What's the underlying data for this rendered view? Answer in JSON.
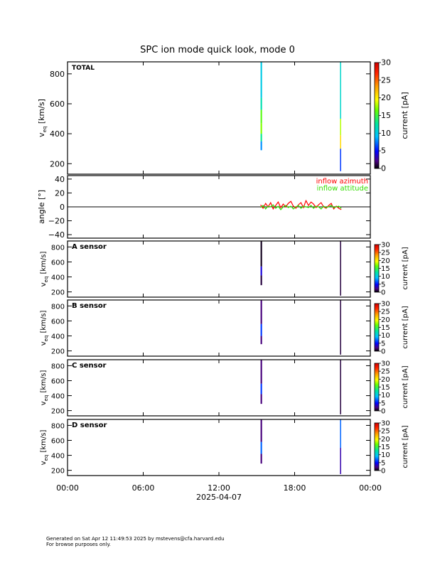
{
  "title": "SPC ion mode quick look, mode 0",
  "xaxis": {
    "ticks": [
      "00:00",
      "06:00",
      "12:00",
      "18:00",
      "00:00"
    ],
    "date": "2025-04-07"
  },
  "footer": {
    "line1": "Generated on Sat Apr 12 11:49:53 2025 by mstevens@cfa.harvard.edu",
    "line2": "For browse purposes only."
  },
  "colorbar": {
    "label": "current [pA]",
    "ticks": [
      "0",
      "5",
      "10",
      "15",
      "20",
      "25",
      "30"
    ]
  },
  "chart_data": [
    {
      "type": "heatmap",
      "panel": "total",
      "label": "TOTAL",
      "ylabel_main": "v",
      "ylabel_sub": "eq",
      "ylabel_unit": " [km/s]",
      "yticks": [
        "200",
        "400",
        "600",
        "800"
      ],
      "ylim": [
        130,
        880
      ],
      "xlim_hours": [
        0,
        24
      ],
      "zlim": [
        0,
        30
      ],
      "blocks": [
        {
          "x0": 15.3,
          "x1": 15.42,
          "y0": 290,
          "y1": 350,
          "z": 8
        },
        {
          "x0": 15.3,
          "x1": 15.42,
          "y0": 350,
          "y1": 400,
          "z": 13
        },
        {
          "x0": 15.3,
          "x1": 15.42,
          "y0": 400,
          "y1": 470,
          "z": 17
        },
        {
          "x0": 15.3,
          "x1": 15.42,
          "y0": 470,
          "y1": 560,
          "z": 16
        },
        {
          "x0": 15.3,
          "x1": 15.42,
          "y0": 560,
          "y1": 640,
          "z": 12
        },
        {
          "x0": 15.3,
          "x1": 15.42,
          "y0": 640,
          "y1": 880,
          "z": 10
        },
        {
          "x0": 21.6,
          "x1": 21.66,
          "y0": 150,
          "y1": 300,
          "z": 6
        },
        {
          "x0": 21.6,
          "x1": 21.66,
          "y0": 300,
          "y1": 390,
          "z": 21
        },
        {
          "x0": 21.6,
          "x1": 21.66,
          "y0": 390,
          "y1": 500,
          "z": 18
        },
        {
          "x0": 21.6,
          "x1": 21.66,
          "y0": 500,
          "y1": 880,
          "z": 11
        }
      ]
    },
    {
      "type": "line",
      "panel": "angle",
      "ylabel": "angle [°]",
      "yticks": [
        "−40",
        "−20",
        "0",
        "20",
        "40"
      ],
      "yvals": [
        -40,
        -20,
        0,
        20,
        40
      ],
      "ylim": [
        -45,
        45
      ],
      "xlim_hours": [
        0,
        24
      ],
      "legend": [
        "inflow azimuth",
        "inflow attitude"
      ],
      "series": [
        {
          "name": "inflow azimuth",
          "color": "#ff0000",
          "x": [
            15.3,
            15.5,
            15.7,
            15.9,
            16.1,
            16.3,
            16.5,
            16.7,
            16.9,
            17.1,
            17.3,
            17.5,
            17.7,
            17.9,
            18.1,
            18.3,
            18.5,
            18.7,
            18.9,
            19.1,
            19.3,
            19.5,
            19.7,
            19.9,
            20.1,
            20.3,
            20.5,
            20.7,
            20.9,
            21.1,
            21.3,
            21.5,
            21.7
          ],
          "y": [
            3,
            -2,
            5,
            0,
            6,
            -3,
            2,
            7,
            -1,
            4,
            0,
            5,
            8,
            1,
            -2,
            3,
            6,
            -1,
            9,
            2,
            7,
            4,
            -1,
            3,
            6,
            0,
            -2,
            2,
            5,
            -3,
            1,
            -2,
            -4
          ]
        },
        {
          "name": "inflow attitude",
          "color": "#33dd00",
          "x": [
            15.3,
            15.5,
            15.7,
            15.9,
            16.1,
            16.3,
            16.5,
            16.7,
            16.9,
            17.1,
            17.3,
            17.5,
            17.7,
            17.9,
            18.1,
            18.3,
            18.5,
            18.7,
            18.9,
            19.1,
            19.3,
            19.5,
            19.7,
            19.9,
            20.1,
            20.3,
            20.5,
            20.7,
            20.9,
            21.1,
            21.3,
            21.5,
            21.7
          ],
          "y": [
            -1,
            2,
            -3,
            1,
            0,
            3,
            -2,
            1,
            -4,
            0,
            2,
            -1,
            1,
            -3,
            0,
            2,
            -2,
            1,
            0,
            -1,
            2,
            -2,
            1,
            0,
            -3,
            1,
            -1,
            0,
            2,
            -1,
            0,
            1,
            -2
          ]
        }
      ]
    },
    {
      "type": "heatmap",
      "panel": "A",
      "label": "A sensor",
      "ylabel_main": "v",
      "ylabel_sub": "eq",
      "ylabel_unit": " [km/s]",
      "yticks": [
        "200",
        "400",
        "600",
        "800"
      ],
      "ylim": [
        130,
        880
      ],
      "xlim_hours": [
        0,
        24
      ],
      "zlim": [
        0,
        30
      ],
      "blocks": [
        {
          "x0": 15.3,
          "x1": 15.42,
          "y0": 290,
          "y1": 420,
          "z": 1
        },
        {
          "x0": 15.3,
          "x1": 15.42,
          "y0": 420,
          "y1": 540,
          "z": 4
        },
        {
          "x0": 15.3,
          "x1": 15.42,
          "y0": 540,
          "y1": 880,
          "z": 0.5
        },
        {
          "x0": 21.6,
          "x1": 21.66,
          "y0": 150,
          "y1": 880,
          "z": 1
        }
      ]
    },
    {
      "type": "heatmap",
      "panel": "B",
      "label": "B sensor",
      "ylabel_main": "v",
      "ylabel_sub": "eq",
      "ylabel_unit": " [km/s]",
      "yticks": [
        "200",
        "400",
        "600",
        "800"
      ],
      "ylim": [
        130,
        880
      ],
      "xlim_hours": [
        0,
        24
      ],
      "zlim": [
        0,
        30
      ],
      "blocks": [
        {
          "x0": 15.3,
          "x1": 15.42,
          "y0": 290,
          "y1": 400,
          "z": 2
        },
        {
          "x0": 15.3,
          "x1": 15.42,
          "y0": 400,
          "y1": 560,
          "z": 6
        },
        {
          "x0": 15.3,
          "x1": 15.42,
          "y0": 560,
          "y1": 880,
          "z": 2
        },
        {
          "x0": 21.6,
          "x1": 21.66,
          "y0": 150,
          "y1": 880,
          "z": 1
        }
      ]
    },
    {
      "type": "heatmap",
      "panel": "C",
      "label": "C sensor",
      "ylabel_main": "v",
      "ylabel_sub": "eq",
      "ylabel_unit": " [km/s]",
      "yticks": [
        "200",
        "400",
        "600",
        "800"
      ],
      "ylim": [
        130,
        880
      ],
      "xlim_hours": [
        0,
        24
      ],
      "zlim": [
        0,
        30
      ],
      "blocks": [
        {
          "x0": 15.3,
          "x1": 15.42,
          "y0": 290,
          "y1": 420,
          "z": 2
        },
        {
          "x0": 15.3,
          "x1": 15.42,
          "y0": 420,
          "y1": 560,
          "z": 6
        },
        {
          "x0": 15.3,
          "x1": 15.42,
          "y0": 560,
          "y1": 880,
          "z": 2
        },
        {
          "x0": 21.6,
          "x1": 21.66,
          "y0": 150,
          "y1": 880,
          "z": 1
        }
      ]
    },
    {
      "type": "heatmap",
      "panel": "D",
      "label": "D sensor",
      "ylabel_main": "v",
      "ylabel_sub": "eq",
      "ylabel_unit": " [km/s]",
      "yticks": [
        "200",
        "400",
        "600",
        "800"
      ],
      "ylim": [
        130,
        880
      ],
      "xlim_hours": [
        0,
        24
      ],
      "zlim": [
        0,
        30
      ],
      "blocks": [
        {
          "x0": 15.3,
          "x1": 15.42,
          "y0": 290,
          "y1": 420,
          "z": 2
        },
        {
          "x0": 15.3,
          "x1": 15.42,
          "y0": 420,
          "y1": 580,
          "z": 7
        },
        {
          "x0": 15.3,
          "x1": 15.42,
          "y0": 580,
          "y1": 880,
          "z": 2
        },
        {
          "x0": 21.6,
          "x1": 21.66,
          "y0": 150,
          "y1": 500,
          "z": 3
        },
        {
          "x0": 21.6,
          "x1": 21.66,
          "y0": 500,
          "y1": 880,
          "z": 7
        }
      ]
    }
  ]
}
